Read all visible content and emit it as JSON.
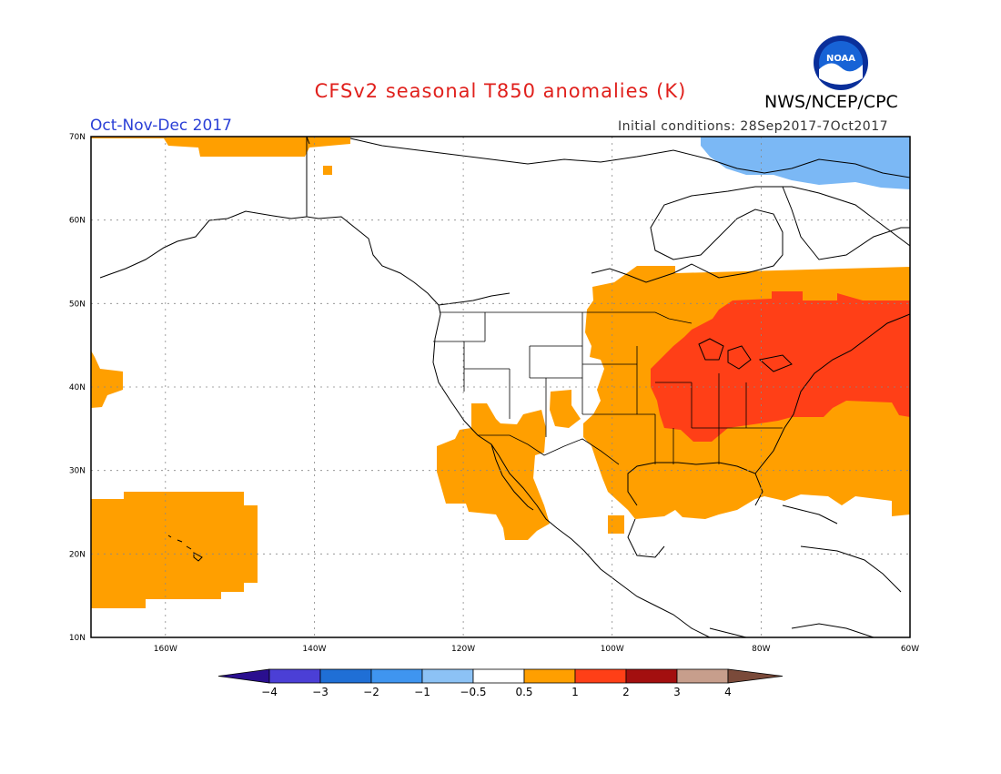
{
  "header": {
    "title": "CFSv2 seasonal T850 anomalies (K)",
    "agency": "NWS/NCEP/CPC",
    "period": "Oct-Nov-Dec 2017",
    "initial_conditions": "Initial conditions: 28Sep2017-7Oct2017",
    "logo_text": "NOAA"
  },
  "map": {
    "lat_ticks": [
      "10N",
      "20N",
      "30N",
      "40N",
      "50N",
      "60N",
      "70N"
    ],
    "lon_ticks": [
      "160W",
      "140W",
      "120W",
      "100W",
      "80W",
      "60W"
    ],
    "lon_range": [
      -170,
      -60
    ],
    "lat_range": [
      10,
      70
    ],
    "colors": {
      "orange": "#ff9f00",
      "red_orange": "#ff3f17",
      "light_blue": "#7bb8f5"
    }
  },
  "colorbar": {
    "labels": [
      "-4",
      "-3",
      "-2",
      "-1",
      "-0.5",
      "0.5",
      "1",
      "2",
      "3",
      "4"
    ],
    "colors": [
      "#2a0f8f",
      "#4b3fd6",
      "#1f6fd6",
      "#3f95f0",
      "#8cc2f5",
      "#ffffff",
      "#ff9f00",
      "#ff3f17",
      "#a30f0f",
      "#c79e8c",
      "#7a4a3a"
    ]
  }
}
